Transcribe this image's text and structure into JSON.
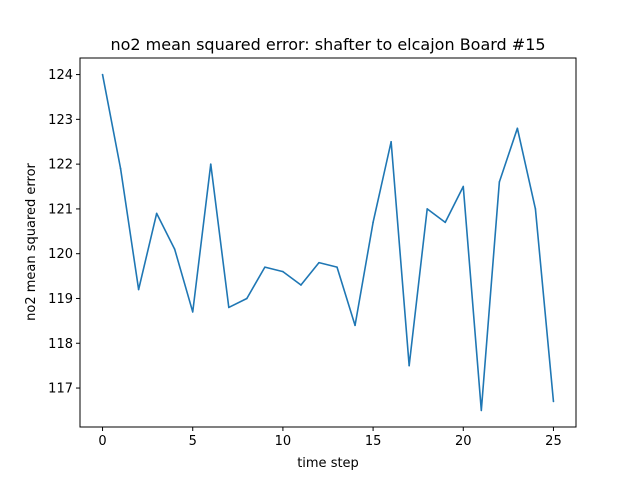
{
  "chart_data": {
    "type": "line",
    "title": "no2 mean squared error: shafter to elcajon Board #15",
    "xlabel": "time step",
    "ylabel": "no2 mean squared error",
    "xlim": [
      -1.25,
      26.25
    ],
    "ylim": [
      116.13,
      124.37
    ],
    "xticks": [
      0,
      5,
      10,
      15,
      20,
      25
    ],
    "yticks": [
      117,
      118,
      119,
      120,
      121,
      122,
      123,
      124
    ],
    "grid": false,
    "series": [
      {
        "color": "#1f77b4",
        "x": [
          0,
          1,
          2,
          3,
          4,
          5,
          6,
          7,
          8,
          9,
          10,
          11,
          12,
          13,
          14,
          15,
          16,
          17,
          18,
          19,
          20,
          21,
          22,
          23,
          24,
          25
        ],
        "y": [
          124.0,
          121.9,
          119.2,
          120.9,
          120.1,
          118.7,
          122.0,
          118.8,
          119.0,
          119.7,
          119.6,
          119.3,
          119.8,
          119.7,
          118.4,
          120.7,
          122.5,
          117.5,
          121.0,
          120.7,
          121.5,
          116.5,
          121.6,
          122.8,
          121.0,
          116.7
        ]
      }
    ]
  }
}
